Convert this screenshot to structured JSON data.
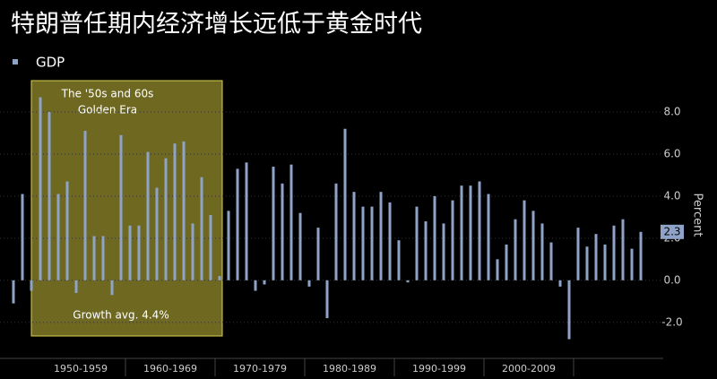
{
  "chart_data": {
    "type": "bar",
    "title": "特朗普任期内经济增长远低于黄金时代",
    "y_axis_label": "Percent",
    "series": [
      {
        "name": "GDP",
        "color": "#8fa3c8",
        "values": [
          -1.1,
          4.1,
          -0.5,
          8.7,
          8.0,
          4.1,
          4.7,
          -0.6,
          7.1,
          2.1,
          2.1,
          -0.7,
          6.9,
          2.6,
          2.6,
          6.1,
          4.4,
          5.8,
          6.5,
          6.6,
          2.7,
          4.9,
          3.1,
          0.2,
          3.3,
          5.3,
          5.6,
          -0.5,
          -0.2,
          5.4,
          4.6,
          5.5,
          3.2,
          -0.3,
          2.5,
          -1.8,
          4.6,
          7.2,
          4.2,
          3.5,
          3.5,
          4.2,
          3.7,
          1.9,
          -0.1,
          3.5,
          2.8,
          4.0,
          2.7,
          3.8,
          4.5,
          4.5,
          4.7,
          4.1,
          1.0,
          1.7,
          2.9,
          3.8,
          3.3,
          2.7,
          1.8,
          -0.3,
          -2.8,
          2.5,
          1.6,
          2.2,
          1.7,
          2.6,
          2.9,
          1.5,
          2.3
        ]
      }
    ],
    "decade_labels": [
      "1950-1959",
      "1960-1969",
      "1970-1979",
      "1980-1989",
      "1990-1999",
      "2000-2009"
    ],
    "ylim": [
      -3.5,
      10
    ],
    "yticks": [
      {
        "value": -2,
        "label": "-2.0"
      },
      {
        "value": 0,
        "label": "0.0"
      },
      {
        "value": 2,
        "label": "2.0"
      },
      {
        "value": 4,
        "label": "4.0"
      },
      {
        "value": 6,
        "label": "6.0"
      },
      {
        "value": 8,
        "label": "8.0"
      }
    ],
    "grid": true,
    "annotations": {
      "box_title": [
        "The '50s and 60s",
        "Golden Era"
      ],
      "box_note": "Growth avg. 4.4%"
    }
  }
}
